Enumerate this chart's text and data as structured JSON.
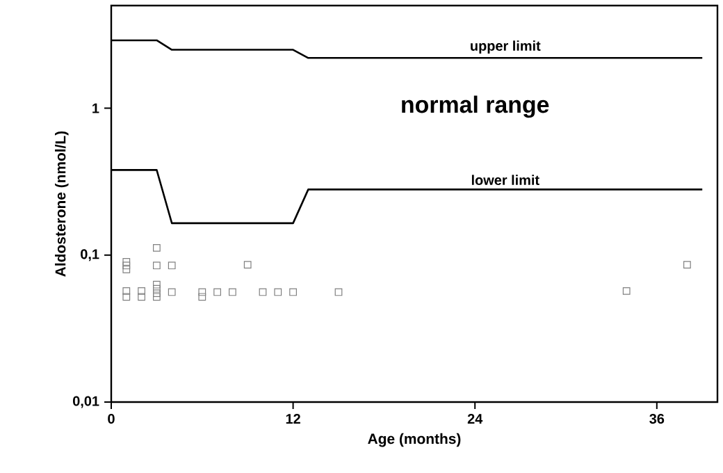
{
  "chart_data": {
    "type": "line",
    "xlabel": "Age (months)",
    "ylabel": "Aldosterone (nmol/L)",
    "log": "y",
    "xlim": [
      0,
      40
    ],
    "ylim": [
      0.01,
      5
    ],
    "xticks": [
      0,
      12,
      24,
      36
    ],
    "yticks": [
      {
        "value": 0.01,
        "label": "0,01"
      },
      {
        "value": 0.1,
        "label": "0,1"
      },
      {
        "value": 1,
        "label": "1"
      }
    ],
    "grid": false,
    "series": [
      {
        "name": "upper limit",
        "color": "#000000",
        "marker": "none",
        "x": [
          0,
          3,
          4,
          12,
          13,
          39
        ],
        "values": [
          2.9,
          2.9,
          2.5,
          2.5,
          2.2,
          2.2
        ]
      },
      {
        "name": "lower limit",
        "color": "#000000",
        "marker": "none",
        "x": [
          0,
          3,
          4,
          12,
          13,
          39
        ],
        "values": [
          0.38,
          0.38,
          0.165,
          0.165,
          0.28,
          0.28
        ]
      },
      {
        "type": "scatter",
        "color": "#808080",
        "marker": "square",
        "x": [
          1,
          1,
          1,
          1,
          1,
          2,
          2,
          3,
          3,
          3,
          3,
          3,
          3,
          4,
          4,
          6,
          6,
          7,
          8,
          9,
          10,
          11,
          12,
          15,
          34,
          38
        ],
        "values": [
          0.09,
          0.085,
          0.08,
          0.057,
          0.052,
          0.057,
          0.052,
          0.112,
          0.085,
          0.063,
          0.059,
          0.055,
          0.052,
          0.085,
          0.056,
          0.056,
          0.052,
          0.056,
          0.056,
          0.086,
          0.056,
          0.056,
          0.056,
          0.056,
          0.057,
          0.086
        ]
      }
    ],
    "annotations": [
      "normal range"
    ]
  }
}
